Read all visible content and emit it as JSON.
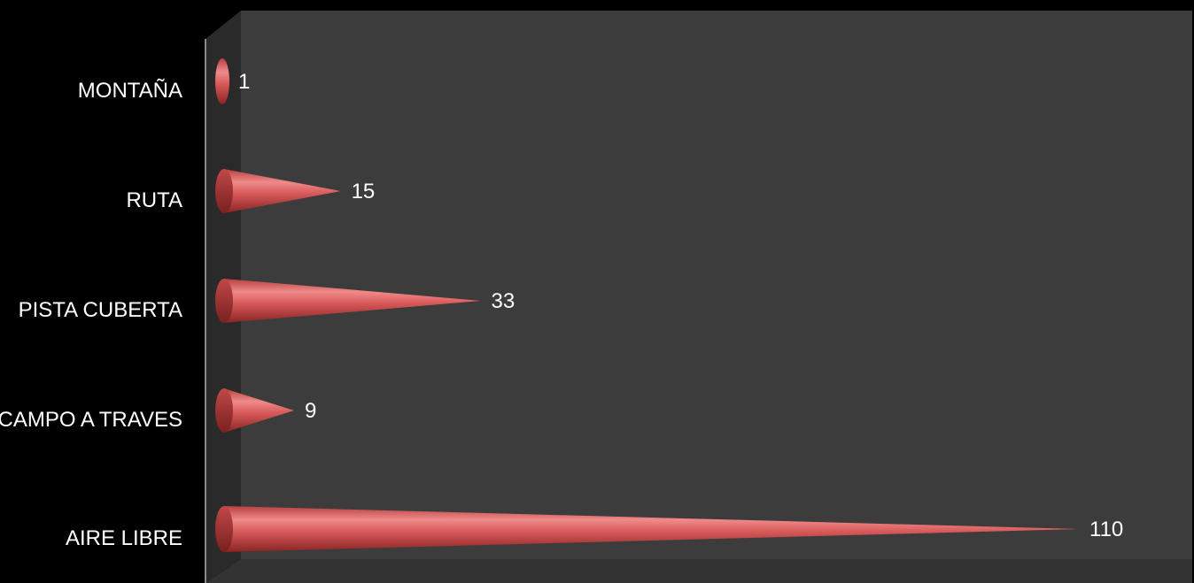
{
  "chart_data": {
    "type": "bar",
    "orientation": "horizontal",
    "style": "3d-cone",
    "categories": [
      "MONTAÑA",
      "RUTA",
      "PISTA CUBERTA",
      "CAMPO A TRAVES",
      "AIRE LIBRE"
    ],
    "values": [
      1,
      15,
      33,
      9,
      110
    ],
    "data_labels": [
      "1",
      "15",
      "33",
      "9",
      "110"
    ],
    "xlim": [
      0,
      124
    ],
    "grid": false,
    "legend": "none",
    "colors": {
      "background": "#000000",
      "plot_wall": "#3c3c3c",
      "side_wall": "#2a2a2a",
      "floor": "#333333",
      "bar": "#d85a5a",
      "bar_highlight": "#f08a8a",
      "bar_shadow": "#8a2424",
      "text": "#ffffff"
    }
  }
}
